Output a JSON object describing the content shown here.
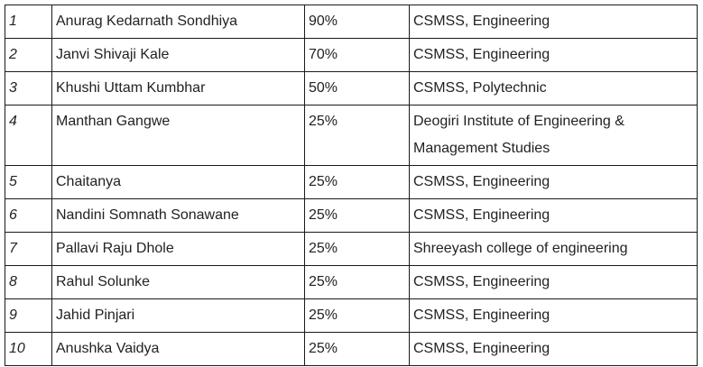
{
  "table": {
    "rows": [
      {
        "sr": "1",
        "name": "Anurag Kedarnath Sondhiya",
        "percentage": "90%",
        "college": "CSMSS, Engineering"
      },
      {
        "sr": "2",
        "name": "Janvi Shivaji Kale",
        "percentage": "70%",
        "college": "CSMSS, Engineering"
      },
      {
        "sr": "3",
        "name": "Khushi Uttam Kumbhar",
        "percentage": "50%",
        "college": "CSMSS, Polytechnic"
      },
      {
        "sr": "4",
        "name": "Manthan Gangwe",
        "percentage": "25%",
        "college": "Deogiri Institute of Engineering & Management Studies"
      },
      {
        "sr": "5",
        "name": "Chaitanya",
        "percentage": "25%",
        "college": "CSMSS, Engineering"
      },
      {
        "sr": "6",
        "name": "Nandini Somnath Sonawane",
        "percentage": "25%",
        "college": "CSMSS, Engineering"
      },
      {
        "sr": "7",
        "name": "Pallavi Raju Dhole",
        "percentage": "25%",
        "college": "Shreeyash college of engineering"
      },
      {
        "sr": "8",
        "name": "Rahul Solunke",
        "percentage": "25%",
        "college": "CSMSS, Engineering"
      },
      {
        "sr": "9",
        "name": "Jahid Pinjari",
        "percentage": "25%",
        "college": "CSMSS, Engineering"
      },
      {
        "sr": "10",
        "name": "Anushka Vaidya",
        "percentage": "25%",
        "college": "CSMSS, Engineering"
      }
    ]
  }
}
